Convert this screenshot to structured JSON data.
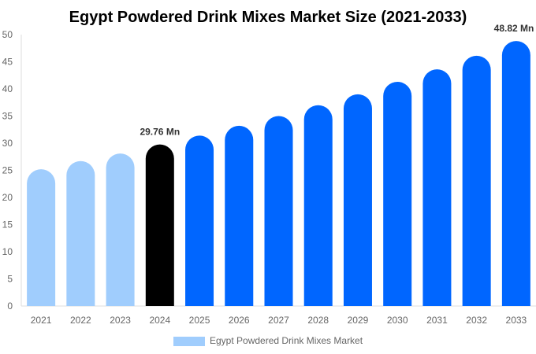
{
  "chart_data": {
    "type": "bar",
    "title": "Egypt Powdered Drink Mixes Market Size (2021-2033)",
    "categories": [
      "2021",
      "2022",
      "2023",
      "2024",
      "2025",
      "2026",
      "2027",
      "2028",
      "2029",
      "2030",
      "2031",
      "2032",
      "2033"
    ],
    "series": [
      {
        "name": "Egypt Powdered Drink Mixes Market",
        "values": [
          25.2,
          26.7,
          28.1,
          29.76,
          31.4,
          33.2,
          35.0,
          37.0,
          39.0,
          41.3,
          43.6,
          46.1,
          48.82
        ]
      }
    ],
    "data_labels": {
      "3": "29.76 Mn",
      "12": "48.82 Mn"
    },
    "ylim": [
      0,
      50
    ],
    "yticks": [
      0,
      5,
      10,
      15,
      20,
      25,
      30,
      35,
      40,
      45,
      50
    ],
    "grid": false,
    "legend": "bottom",
    "colors": {
      "historical": "#a0cdfd",
      "current": "#000000",
      "forecast": "#0066ff"
    }
  }
}
